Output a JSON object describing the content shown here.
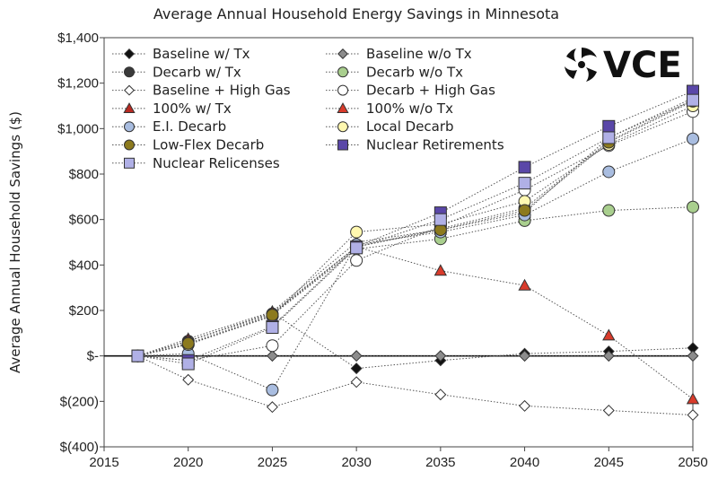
{
  "chart_data": {
    "type": "line",
    "title": "Average Annual Household Energy Savings in Minnesota",
    "xlabel": "",
    "ylabel": "Average Annual Household Savings ($)",
    "xlim": [
      2015,
      2050
    ],
    "ylim": [
      -400,
      1400
    ],
    "x_ticks": [
      "2015",
      "2020",
      "2025",
      "2030",
      "2035",
      "2040",
      "2045",
      "2050"
    ],
    "y_ticks": [
      "$(400)",
      "$(200)",
      "$-",
      "$200",
      "$400",
      "$600",
      "$800",
      "$1,000",
      "$1,200",
      "$1,400"
    ],
    "x": [
      2017,
      2020,
      2025,
      2030,
      2035,
      2040,
      2045,
      2050
    ],
    "legend_position": "top-left",
    "series": [
      {
        "name": "Baseline w/ Tx",
        "marker": "diamond",
        "fill": "#111111",
        "values": [
          0,
          65,
          190,
          -55,
          -20,
          10,
          20,
          35
        ]
      },
      {
        "name": "Baseline w/o Tx",
        "marker": "diamond",
        "fill": "#8c8c8c",
        "values": [
          0,
          0,
          0,
          0,
          0,
          0,
          0,
          0
        ]
      },
      {
        "name": "Decarb w/ Tx",
        "marker": "circle",
        "fill": "#3a3a3a",
        "values": [
          0,
          65,
          185,
          480,
          560,
          650,
          945,
          1125
        ]
      },
      {
        "name": "Decarb w/o Tx",
        "marker": "circle",
        "fill": "#a9cf8e",
        "values": [
          0,
          50,
          180,
          470,
          515,
          595,
          640,
          655
        ]
      },
      {
        "name": "Baseline + High Gas",
        "marker": "diamond",
        "fill": "#ffffff",
        "values": [
          0,
          -105,
          -225,
          -115,
          -170,
          -220,
          -240,
          -260
        ]
      },
      {
        "name": "Decarb + High Gas",
        "marker": "circle",
        "fill": "#ffffff",
        "values": [
          0,
          -20,
          45,
          420,
          570,
          730,
          925,
          1075
        ]
      },
      {
        "name": "100% w/ Tx",
        "marker": "triangle",
        "fill": "#b82a22",
        "values": [
          0,
          75,
          195,
          500,
          555,
          630,
          960,
          1135
        ]
      },
      {
        "name": "100% w/o Tx",
        "marker": "triangle",
        "fill": "#d93b2b",
        "values": [
          0,
          65,
          190,
          480,
          375,
          310,
          90,
          -190
        ]
      },
      {
        "name": "E.I. Decarb",
        "marker": "circle",
        "fill": "#a9bde0",
        "values": [
          0,
          10,
          -150,
          490,
          545,
          620,
          810,
          955
        ]
      },
      {
        "name": "Local Decarb",
        "marker": "circle",
        "fill": "#fff8b0",
        "values": [
          0,
          50,
          175,
          545,
          580,
          680,
          930,
          1100
        ]
      },
      {
        "name": "Low-Flex Decarb",
        "marker": "circle",
        "fill": "#8c7a1e",
        "values": [
          0,
          55,
          180,
          480,
          555,
          640,
          940,
          1120
        ]
      },
      {
        "name": "Nuclear Retirements",
        "marker": "square",
        "fill": "#5a47a8",
        "values": [
          0,
          -20,
          130,
          480,
          630,
          830,
          1010,
          1165
        ]
      },
      {
        "name": "Nuclear Relicenses",
        "marker": "square",
        "fill": "#b0b0e6",
        "values": [
          0,
          -35,
          125,
          475,
          600,
          760,
          960,
          1125
        ]
      }
    ]
  },
  "logo": {
    "text": "VCE"
  }
}
